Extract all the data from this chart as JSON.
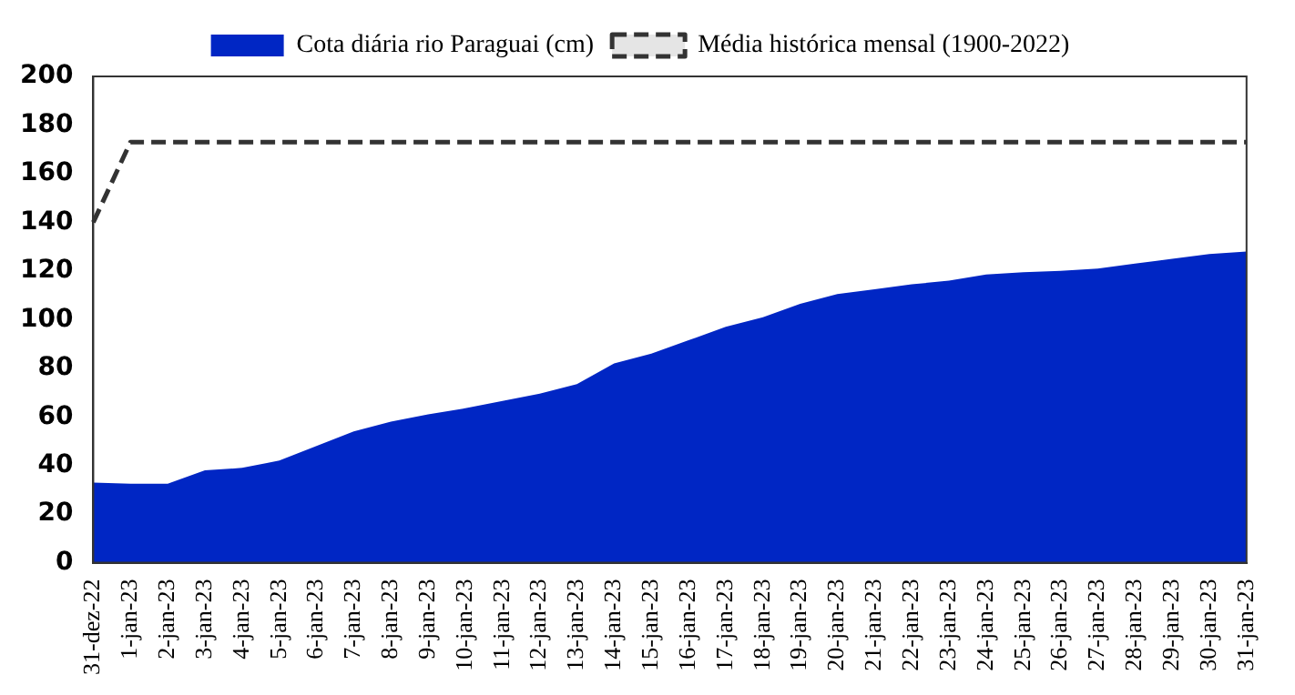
{
  "chart_data": {
    "type": "area",
    "categories": [
      "31-dez-22",
      "1-jan-23",
      "2-jan-23",
      "3-jan-23",
      "4-jan-23",
      "5-jan-23",
      "6-jan-23",
      "7-jan-23",
      "8-jan-23",
      "9-jan-23",
      "10-jan-23",
      "11-jan-23",
      "12-jan-23",
      "13-jan-23",
      "14-jan-23",
      "15-jan-23",
      "16-jan-23",
      "17-jan-23",
      "18-jan-23",
      "19-jan-23",
      "20-jan-23",
      "21-jan-23",
      "22-jan-23",
      "23-jan-23",
      "24-jan-23",
      "25-jan-23",
      "26-jan-23",
      "27-jan-23",
      "28-jan-23",
      "29-jan-23",
      "30-jan-23",
      "31-jan-23"
    ],
    "series": [
      {
        "name": "Cota diária rio Paraguai (cm)",
        "color": "#0026c4",
        "values": [
          33,
          32.5,
          32.5,
          38,
          39,
          42,
          48,
          54,
          58,
          61,
          63.5,
          66.5,
          69.5,
          73.5,
          82,
          86,
          91.5,
          97,
          101,
          106.5,
          110.5,
          112.5,
          114.5,
          116,
          118.5,
          119.5,
          120,
          121,
          123,
          125,
          127,
          128
        ]
      },
      {
        "name": "Média histórica mensal (1900-2022)",
        "type": "line",
        "line_style": "dashed",
        "color": "#333333",
        "values": [
          140,
          173,
          173,
          173,
          173,
          173,
          173,
          173,
          173,
          173,
          173,
          173,
          173,
          173,
          173,
          173,
          173,
          173,
          173,
          173,
          173,
          173,
          173,
          173,
          173,
          173,
          173,
          173,
          173,
          173,
          173,
          173
        ]
      }
    ],
    "ylim": [
      0,
      200
    ],
    "yticks": [
      0,
      20,
      40,
      60,
      80,
      100,
      120,
      140,
      160,
      180,
      200
    ],
    "grid": false,
    "legend": "top"
  }
}
